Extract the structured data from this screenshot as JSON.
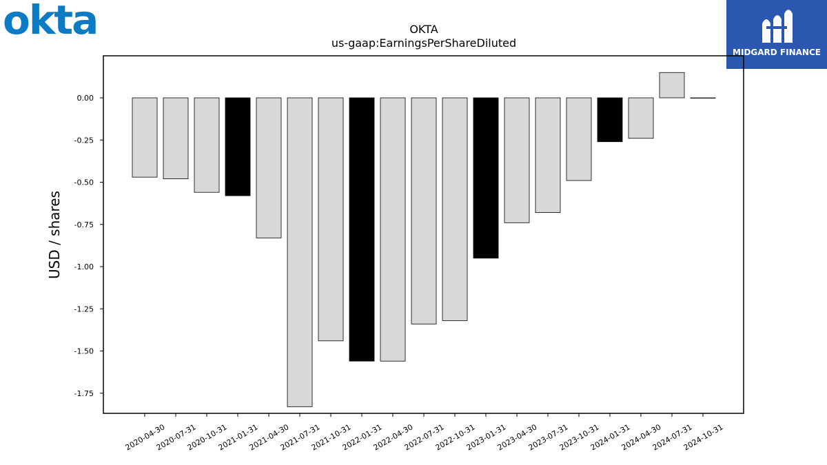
{
  "branding": {
    "left_logo_text": "okta",
    "left_logo_color": "#0b7cc4",
    "right_logo_text": "MIDGARD FINANCE",
    "right_logo_bg": "#2a57b0"
  },
  "chart_data": {
    "type": "bar",
    "title": "OKTA",
    "subtitle": "us-gaap:EarningsPerShareDiluted",
    "xlabel": "",
    "ylabel": "USD / shares",
    "ylim": [
      -1.87,
      0.25
    ],
    "yticks": [
      "0.00",
      "-0.25",
      "-0.50",
      "-0.75",
      "-1.00",
      "-1.25",
      "-1.50",
      "-1.75"
    ],
    "categories": [
      "2020-04-30",
      "2020-07-31",
      "2020-10-31",
      "2021-01-31",
      "2021-04-30",
      "2021-07-31",
      "2021-10-31",
      "2022-01-31",
      "2022-04-30",
      "2022-07-31",
      "2022-10-31",
      "2023-01-31",
      "2023-04-30",
      "2023-07-31",
      "2023-10-31",
      "2024-01-31",
      "2024-04-30",
      "2024-07-31",
      "2024-10-31"
    ],
    "values": [
      -0.47,
      -0.48,
      -0.56,
      -0.58,
      -0.83,
      -1.83,
      -1.44,
      -1.56,
      -1.56,
      -1.34,
      -1.32,
      -0.95,
      -0.74,
      -0.68,
      -0.49,
      -0.26,
      -0.24,
      0.15,
      0.0
    ],
    "highlight": [
      false,
      false,
      false,
      true,
      false,
      false,
      false,
      true,
      false,
      false,
      false,
      true,
      false,
      false,
      false,
      true,
      false,
      false,
      false
    ],
    "colors": {
      "normal": "#d8d8d8",
      "highlight": "#000000",
      "edge": "#000000"
    },
    "grid": false,
    "legend": "none"
  }
}
